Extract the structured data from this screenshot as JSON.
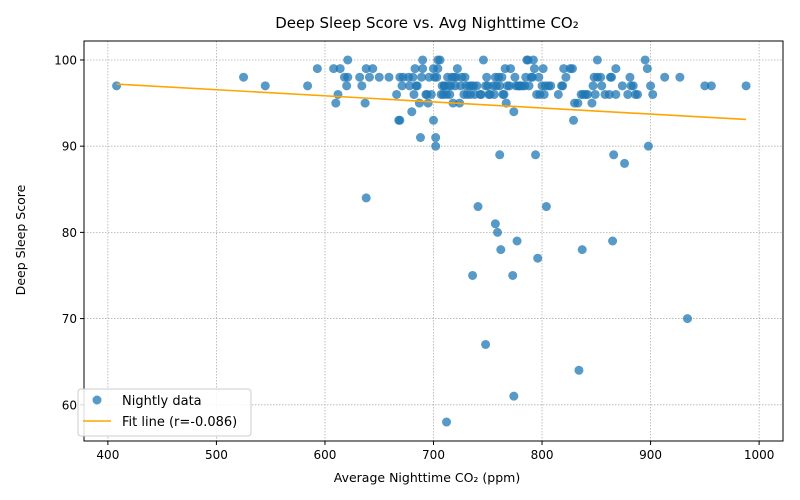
{
  "chart_data": {
    "type": "scatter",
    "title": "Deep Sleep Score vs. Avg Nighttime CO₂",
    "xlabel": "Average Nighttime CO₂ (ppm)",
    "ylabel": "Deep Sleep Score",
    "xlim": [
      378,
      1022
    ],
    "ylim": [
      55.8,
      102.2
    ],
    "xticks": [
      400,
      500,
      600,
      700,
      800,
      900,
      1000
    ],
    "yticks": [
      60,
      70,
      80,
      90,
      100
    ],
    "grid": true,
    "legend_position": "lower left",
    "colors": {
      "points": "#1f77b4",
      "fit_line": "#ffa500"
    },
    "series": [
      {
        "name": "Nightly data",
        "type": "scatter",
        "points": [
          [
            408,
            97
          ],
          [
            525,
            98
          ],
          [
            545,
            97
          ],
          [
            584,
            97
          ],
          [
            593,
            99
          ],
          [
            608,
            99
          ],
          [
            610,
            95
          ],
          [
            612,
            96
          ],
          [
            614,
            99
          ],
          [
            618,
            98
          ],
          [
            620,
            97
          ],
          [
            621,
            98
          ],
          [
            621,
            100
          ],
          [
            632,
            98
          ],
          [
            634,
            97
          ],
          [
            637,
            95
          ],
          [
            638,
            99
          ],
          [
            638,
            84
          ],
          [
            641,
            98
          ],
          [
            644,
            99
          ],
          [
            650,
            98
          ],
          [
            659,
            98
          ],
          [
            666,
            96
          ],
          [
            668,
            93
          ],
          [
            669,
            93
          ],
          [
            669,
            98
          ],
          [
            671,
            97
          ],
          [
            672,
            98
          ],
          [
            677,
            98
          ],
          [
            678,
            97
          ],
          [
            680,
            94
          ],
          [
            681,
            98
          ],
          [
            682,
            96
          ],
          [
            683,
            99
          ],
          [
            684,
            97
          ],
          [
            685,
            97
          ],
          [
            687,
            95
          ],
          [
            688,
            91
          ],
          [
            689,
            98
          ],
          [
            690,
            99
          ],
          [
            690,
            100
          ],
          [
            693,
            96
          ],
          [
            694,
            96
          ],
          [
            695,
            95
          ],
          [
            696,
            98
          ],
          [
            698,
            96
          ],
          [
            700,
            99
          ],
          [
            700,
            93
          ],
          [
            701,
            98
          ],
          [
            702,
            91
          ],
          [
            702,
            90
          ],
          [
            703,
            98
          ],
          [
            704,
            99
          ],
          [
            704,
            100
          ],
          [
            706,
            100
          ],
          [
            707,
            96
          ],
          [
            708,
            97
          ],
          [
            709,
            96
          ],
          [
            710,
            97
          ],
          [
            710,
            97
          ],
          [
            712,
            58
          ],
          [
            712,
            96
          ],
          [
            713,
            98
          ],
          [
            714,
            97
          ],
          [
            715,
            96
          ],
          [
            716,
            97
          ],
          [
            717,
            98
          ],
          [
            718,
            95
          ],
          [
            719,
            98
          ],
          [
            720,
            97
          ],
          [
            721,
            98
          ],
          [
            722,
            99
          ],
          [
            724,
            95
          ],
          [
            725,
            97
          ],
          [
            726,
            98
          ],
          [
            728,
            96
          ],
          [
            729,
            98
          ],
          [
            730,
            97
          ],
          [
            731,
            96
          ],
          [
            733,
            97
          ],
          [
            734,
            96
          ],
          [
            735,
            97
          ],
          [
            736,
            75
          ],
          [
            737,
            97
          ],
          [
            738,
            96
          ],
          [
            740,
            97
          ],
          [
            741,
            83
          ],
          [
            743,
            96
          ],
          [
            744,
            96
          ],
          [
            746,
            100
          ],
          [
            748,
            97
          ],
          [
            748,
            67
          ],
          [
            749,
            98
          ],
          [
            750,
            97
          ],
          [
            751,
            96
          ],
          [
            752,
            96
          ],
          [
            755,
            97
          ],
          [
            756,
            96
          ],
          [
            757,
            81
          ],
          [
            757,
            98
          ],
          [
            758,
            97
          ],
          [
            759,
            80
          ],
          [
            760,
            98
          ],
          [
            761,
            97
          ],
          [
            761,
            89
          ],
          [
            762,
            78
          ],
          [
            763,
            98
          ],
          [
            764,
            96
          ],
          [
            765,
            96
          ],
          [
            766,
            99
          ],
          [
            767,
            95
          ],
          [
            768,
            97
          ],
          [
            770,
            97
          ],
          [
            771,
            99
          ],
          [
            773,
            75
          ],
          [
            774,
            61
          ],
          [
            774,
            94
          ],
          [
            775,
            98
          ],
          [
            776,
            97
          ],
          [
            777,
            79
          ],
          [
            778,
            97
          ],
          [
            779,
            97
          ],
          [
            780,
            97
          ],
          [
            782,
            97
          ],
          [
            784,
            97
          ],
          [
            785,
            98
          ],
          [
            786,
            100
          ],
          [
            787,
            100
          ],
          [
            788,
            97
          ],
          [
            790,
            98
          ],
          [
            791,
            98
          ],
          [
            792,
            100
          ],
          [
            793,
            99
          ],
          [
            794,
            89
          ],
          [
            795,
            96
          ],
          [
            796,
            77
          ],
          [
            797,
            98
          ],
          [
            798,
            96
          ],
          [
            800,
            97
          ],
          [
            801,
            99
          ],
          [
            802,
            96
          ],
          [
            803,
            97
          ],
          [
            804,
            83
          ],
          [
            806,
            97
          ],
          [
            808,
            97
          ],
          [
            815,
            96
          ],
          [
            818,
            97
          ],
          [
            819,
            97
          ],
          [
            820,
            99
          ],
          [
            822,
            98
          ],
          [
            826,
            99
          ],
          [
            828,
            99
          ],
          [
            829,
            93
          ],
          [
            830,
            95
          ],
          [
            833,
            95
          ],
          [
            834,
            64
          ],
          [
            836,
            96
          ],
          [
            837,
            78
          ],
          [
            838,
            96
          ],
          [
            840,
            96
          ],
          [
            842,
            96
          ],
          [
            846,
            95
          ],
          [
            847,
            97
          ],
          [
            848,
            98
          ],
          [
            849,
            96
          ],
          [
            851,
            98
          ],
          [
            851,
            100
          ],
          [
            854,
            98
          ],
          [
            855,
            97
          ],
          [
            858,
            96
          ],
          [
            862,
            96
          ],
          [
            863,
            98
          ],
          [
            864,
            98
          ],
          [
            865,
            79
          ],
          [
            866,
            89
          ],
          [
            868,
            96
          ],
          [
            868,
            99
          ],
          [
            874,
            97
          ],
          [
            876,
            88
          ],
          [
            879,
            96
          ],
          [
            881,
            98
          ],
          [
            882,
            97
          ],
          [
            884,
            97
          ],
          [
            886,
            96
          ],
          [
            888,
            96
          ],
          [
            895,
            100
          ],
          [
            897,
            99
          ],
          [
            898,
            90
          ],
          [
            900,
            97
          ],
          [
            902,
            96
          ],
          [
            913,
            98
          ],
          [
            927,
            98
          ],
          [
            934,
            70
          ],
          [
            950,
            97
          ],
          [
            956,
            97
          ],
          [
            988,
            97
          ]
        ]
      },
      {
        "name": "Fit line (r=-0.086)",
        "type": "line",
        "points": [
          [
            408,
            97.2
          ],
          [
            988,
            93.1
          ]
        ]
      }
    ]
  }
}
